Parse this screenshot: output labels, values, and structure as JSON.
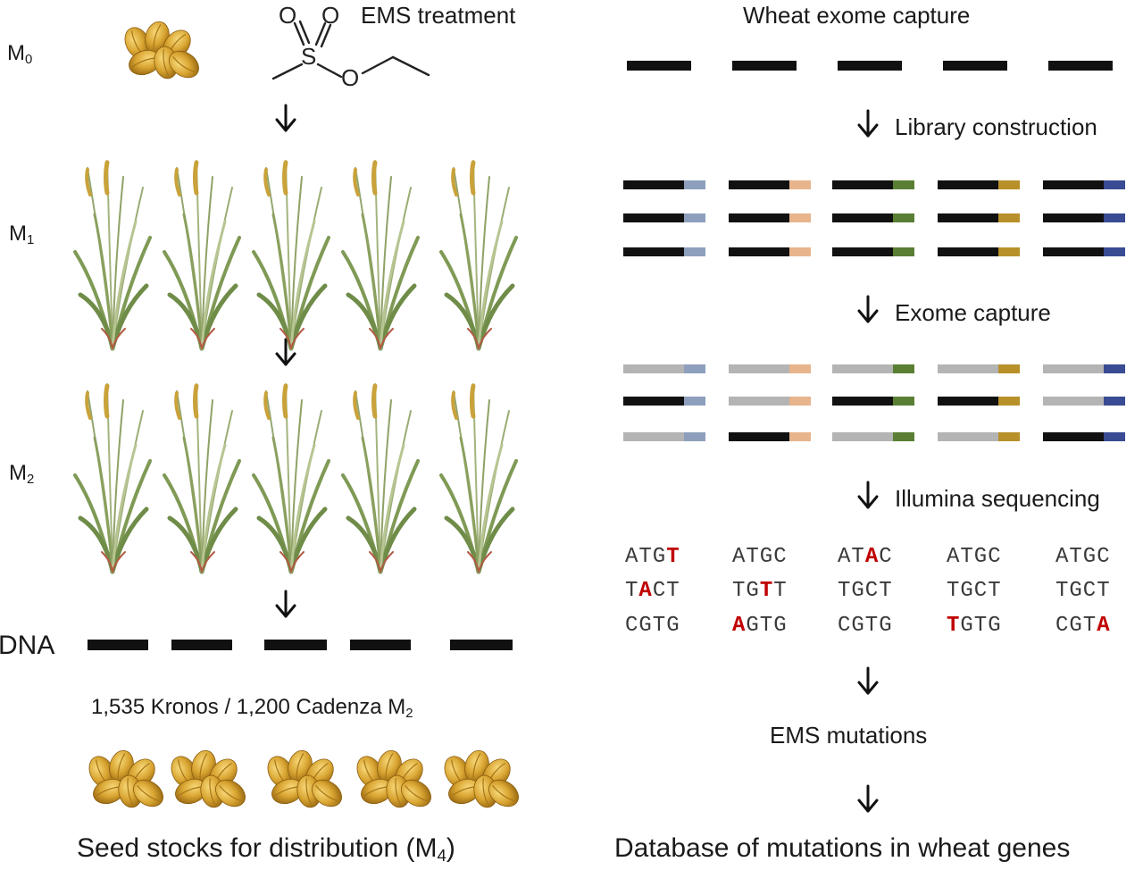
{
  "left": {
    "stages": {
      "m0": {
        "base": "M",
        "sub": "0"
      },
      "m1": {
        "base": "M",
        "sub": "1"
      },
      "m2": {
        "base": "M",
        "sub": "2"
      }
    },
    "ems_label": "EMS treatment",
    "molecule_atoms": {
      "o": "O",
      "s": "S"
    },
    "dna_label": "DNA",
    "population": {
      "text": "1,535 Kronos / 1,200 Cadenza M",
      "sub": "2"
    },
    "seed_caption": {
      "text": "Seed stocks for distribution (M",
      "sub": "4",
      "close": ")"
    }
  },
  "right": {
    "title": "Wheat exome capture",
    "steps": {
      "library": "Library construction",
      "capture": "Exome capture",
      "sequencing": "Illumina sequencing",
      "mutations": "EMS mutations",
      "database": "Database of mutations in wheat genes"
    },
    "barcode_colors": [
      "#8d9fbd",
      "#e8b48c",
      "#5a7f34",
      "#b8902a",
      "#394b93"
    ],
    "reads": [
      [
        {
          "pre": "ATG",
          "mut": "T",
          "post": ""
        },
        {
          "pre": "T",
          "mut": "A",
          "post": "CT"
        },
        {
          "pre": "CGTG",
          "mut": "",
          "post": ""
        }
      ],
      [
        {
          "pre": "ATGC",
          "mut": "",
          "post": ""
        },
        {
          "pre": "TG",
          "mut": "T",
          "post": "T"
        },
        {
          "pre": "",
          "mut": "A",
          "post": "GTG"
        }
      ],
      [
        {
          "pre": "AT",
          "mut": "A",
          "post": "C"
        },
        {
          "pre": "TGCT",
          "mut": "",
          "post": ""
        },
        {
          "pre": "CGTG",
          "mut": "",
          "post": ""
        }
      ],
      [
        {
          "pre": "ATGC",
          "mut": "",
          "post": ""
        },
        {
          "pre": "TGCT",
          "mut": "",
          "post": ""
        },
        {
          "pre": "",
          "mut": "T",
          "post": "GTG"
        }
      ],
      [
        {
          "pre": "ATGC",
          "mut": "",
          "post": ""
        },
        {
          "pre": "TGCT",
          "mut": "",
          "post": ""
        },
        {
          "pre": "CGT",
          "mut": "A",
          "post": ""
        }
      ]
    ],
    "capture_pattern": [
      [
        "gray",
        "black",
        "gray"
      ],
      [
        "gray",
        "gray",
        "black"
      ],
      [
        "gray",
        "black",
        "gray"
      ],
      [
        "gray",
        "black",
        "gray"
      ],
      [
        "gray",
        "gray",
        "black"
      ]
    ]
  }
}
